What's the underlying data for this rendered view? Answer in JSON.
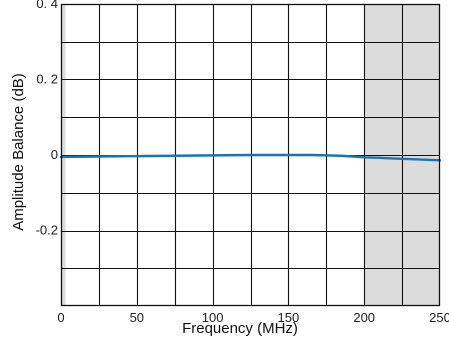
{
  "chart_data": {
    "type": "line",
    "title": "",
    "xlabel": "Frequency (MHz)",
    "ylabel": "Amplitude Balance (dB)",
    "xlim": [
      0,
      250
    ],
    "ylim": [
      -0.4,
      0.4
    ],
    "x_ticks": [
      0,
      50,
      100,
      150,
      200,
      250
    ],
    "x_tick_labels": [
      "0",
      "50",
      "100",
      "150",
      "200",
      "250"
    ],
    "y_ticks": [
      -0.2,
      0,
      0.2,
      0.4
    ],
    "y_tick_labels": [
      "-0.2",
      "0",
      "0. 2",
      "0. 4"
    ],
    "grid": true,
    "x_grid_step": 25,
    "y_grid_step": 0.1,
    "shaded_ranges": [
      [
        0,
        3
      ],
      [
        200,
        250
      ]
    ],
    "shade_color": "#dcdcdd",
    "line_color": "#1a75b8",
    "series": [
      {
        "x": [
          0,
          25,
          50,
          75,
          100,
          125,
          150,
          165,
          185,
          200,
          225,
          250
        ],
        "y": [
          -0.005,
          -0.004,
          -0.003,
          -0.002,
          -0.001,
          0.0,
          0.0,
          0.0,
          -0.002,
          -0.006,
          -0.01,
          -0.014
        ]
      }
    ]
  }
}
